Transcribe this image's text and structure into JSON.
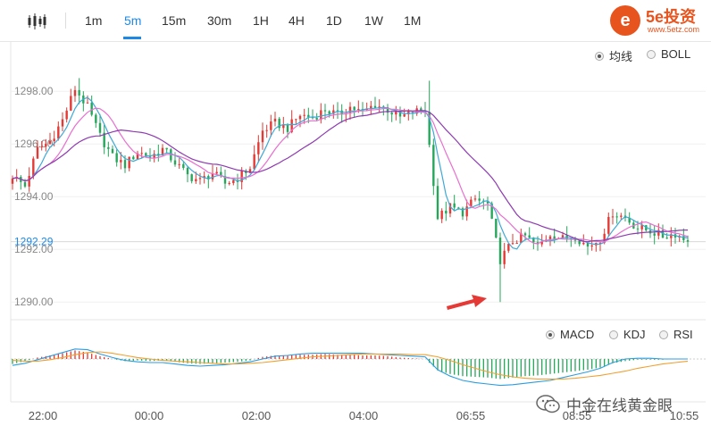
{
  "toolbar": {
    "timeframes": [
      "1m",
      "5m",
      "15m",
      "30m",
      "1H",
      "4H",
      "1D",
      "1W",
      "1M"
    ],
    "active_timeframe": "5m"
  },
  "logo": {
    "mark": "e",
    "title": "5e投资",
    "url": "www.5etz.com"
  },
  "main_options": [
    {
      "label": "均线",
      "selected": true
    },
    {
      "label": "BOLL",
      "selected": false
    }
  ],
  "indicator_options": [
    {
      "label": "MACD",
      "selected": true
    },
    {
      "label": "KDJ",
      "selected": false
    },
    {
      "label": "RSI",
      "selected": false
    }
  ],
  "watermark": {
    "text": "中金在线黄金眼"
  },
  "colors": {
    "up": "#e53935",
    "down": "#26a65b",
    "ma_fast": "#3fa9d6",
    "ma_mid": "#e86fd0",
    "ma_slow": "#8e3bb0",
    "accent": "#1e88e5",
    "arrow": "#e53935",
    "macd_dif": "#2b9de0",
    "macd_dea": "#f0a030"
  },
  "chart_data": {
    "type": "candlestick",
    "y_ticks": [
      "1298.00",
      "1296.00",
      "1294.00",
      "1292.00",
      "1290.00"
    ],
    "ylim": [
      1289.6,
      1299.6
    ],
    "current_price": "1292.29",
    "x_ticks": [
      "22:00",
      "00:00",
      "02:00",
      "04:00",
      "06:55",
      "08:55",
      "10:55"
    ],
    "annotations": [
      {
        "type": "arrow",
        "pointing_at": "low spike near 06:55",
        "price": 1290.0
      }
    ],
    "closes": [
      1294.8,
      1294.4,
      1295.8,
      1296.1,
      1296.9,
      1298.1,
      1297.4,
      1296.3,
      1295.5,
      1295.2,
      1295.7,
      1295.5,
      1295.8,
      1295.3,
      1294.8,
      1294.6,
      1294.9,
      1294.5,
      1294.7,
      1295.1,
      1296.5,
      1296.8,
      1296.6,
      1297.1,
      1297.0,
      1297.3,
      1297.1,
      1297.4,
      1297.2,
      1297.5,
      1297.3,
      1297.0,
      1297.2,
      1297.3,
      1293.2,
      1293.6,
      1293.4,
      1293.9,
      1293.7,
      1291.6,
      1292.3,
      1292.5,
      1292.1,
      1292.6,
      1292.4,
      1292.5,
      1292.1,
      1292.4,
      1293.4,
      1293.2,
      1292.8,
      1292.7,
      1292.5,
      1292.6,
      1292.29
    ],
    "macd": {
      "histogram": [
        -0.7,
        -0.3,
        0.2,
        0.5,
        0.8,
        1.2,
        0.9,
        0.4,
        0.0,
        -0.3,
        -0.2,
        -0.3,
        -0.2,
        -0.4,
        -0.6,
        -0.7,
        -0.6,
        -0.5,
        -0.4,
        -0.2,
        0.3,
        0.5,
        0.5,
        0.6,
        0.6,
        0.7,
        0.6,
        0.6,
        0.5,
        0.5,
        0.4,
        0.2,
        0.1,
        0.0,
        -1.6,
        -2.1,
        -2.4,
        -2.5,
        -2.6,
        -2.8,
        -2.6,
        -2.4,
        -2.3,
        -2.1,
        -1.9,
        -1.7,
        -1.5,
        -1.2,
        -0.6,
        -0.3,
        -0.1,
        -0.1,
        -0.1,
        0.0,
        0.0
      ],
      "dif": [
        -0.9,
        -0.6,
        -0.1,
        0.4,
        0.9,
        1.4,
        1.3,
        0.7,
        0.2,
        -0.2,
        -0.4,
        -0.5,
        -0.5,
        -0.7,
        -0.9,
        -1.0,
        -0.9,
        -0.8,
        -0.6,
        -0.4,
        0.0,
        0.4,
        0.5,
        0.7,
        0.8,
        0.8,
        0.8,
        0.8,
        0.8,
        0.7,
        0.6,
        0.5,
        0.4,
        0.3,
        -1.5,
        -2.4,
        -3.0,
        -3.3,
        -3.5,
        -3.7,
        -3.6,
        -3.4,
        -3.2,
        -3.0,
        -2.6,
        -2.2,
        -1.8,
        -1.3,
        -0.5,
        0.0,
        0.1,
        0.1,
        0.0,
        0.0,
        0.0
      ],
      "dea": [
        -0.2,
        -0.3,
        -0.3,
        -0.1,
        0.2,
        0.6,
        0.9,
        1.0,
        0.8,
        0.5,
        0.2,
        0.0,
        -0.2,
        -0.3,
        -0.4,
        -0.5,
        -0.6,
        -0.7,
        -0.7,
        -0.6,
        -0.5,
        -0.3,
        -0.1,
        0.1,
        0.3,
        0.4,
        0.5,
        0.6,
        0.7,
        0.7,
        0.7,
        0.7,
        0.6,
        0.6,
        0.3,
        -0.2,
        -0.8,
        -1.3,
        -1.8,
        -2.2,
        -2.5,
        -2.7,
        -2.8,
        -2.8,
        -2.8,
        -2.7,
        -2.5,
        -2.3,
        -2.0,
        -1.7,
        -1.3,
        -1.0,
        -0.7,
        -0.5,
        -0.3
      ]
    }
  }
}
